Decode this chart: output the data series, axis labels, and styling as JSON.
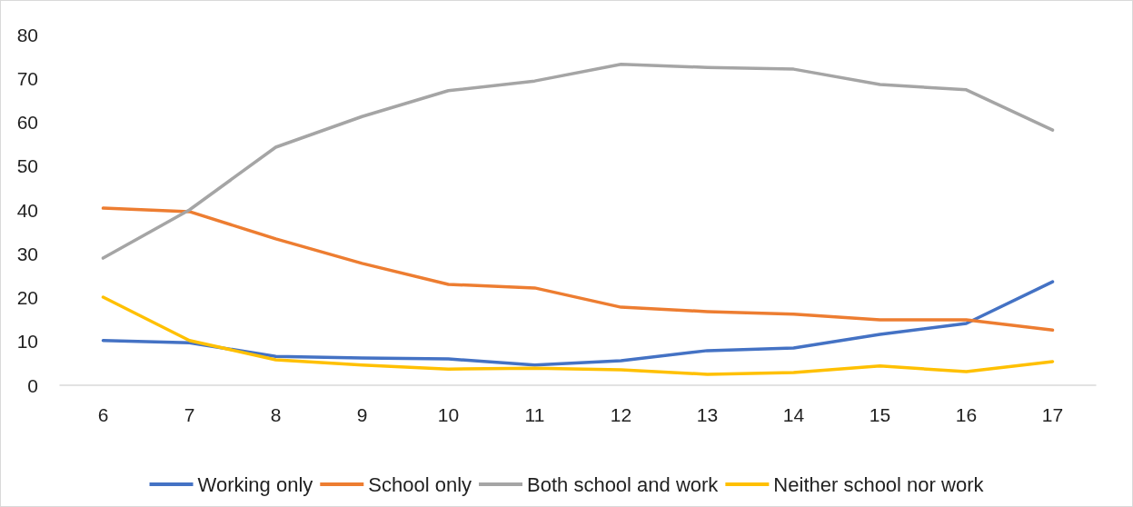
{
  "chart_data": {
    "type": "line",
    "categories": [
      "6",
      "7",
      "8",
      "9",
      "10",
      "11",
      "12",
      "13",
      "14",
      "15",
      "16",
      "17"
    ],
    "series": [
      {
        "name": "Working only",
        "color": "#4472c4",
        "values": [
          10.2,
          9.7,
          6.6,
          6.2,
          6.0,
          4.6,
          5.6,
          7.9,
          8.5,
          11.6,
          14.1,
          23.6
        ]
      },
      {
        "name": "School only",
        "color": "#ed7d31",
        "values": [
          40.4,
          39.6,
          33.4,
          27.8,
          23.0,
          22.2,
          17.8,
          16.8,
          16.2,
          14.9,
          14.9,
          12.6
        ]
      },
      {
        "name": "Both school and work",
        "color": "#a5a5a5",
        "values": [
          29.0,
          40.0,
          54.3,
          61.3,
          67.2,
          69.4,
          73.2,
          72.5,
          72.1,
          68.6,
          67.4,
          58.2
        ]
      },
      {
        "name": "Neither school nor work",
        "color": "#ffc000",
        "values": [
          20.1,
          10.2,
          5.8,
          4.6,
          3.7,
          3.9,
          3.5,
          2.5,
          2.9,
          4.4,
          3.1,
          5.4
        ]
      }
    ],
    "ylim": [
      0,
      80
    ],
    "yticks": [
      0,
      10,
      20,
      30,
      40,
      50,
      60,
      70,
      80
    ],
    "grid": false,
    "legend": "bottom",
    "marker": "none",
    "line_style": "solid"
  }
}
